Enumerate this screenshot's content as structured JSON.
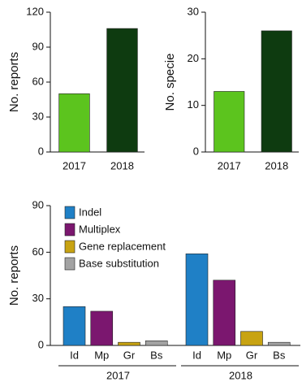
{
  "chart_data": [
    {
      "type": "bar",
      "y_label": "No. reports",
      "categories": [
        "2017",
        "2018"
      ],
      "values": [
        50,
        106
      ],
      "colors": [
        "#5cc41e",
        "#0e3b10"
      ],
      "ylim": [
        0,
        120
      ],
      "yticks": [
        0,
        30,
        60,
        90,
        120
      ]
    },
    {
      "type": "bar",
      "y_label": "No. specie",
      "categories": [
        "2017",
        "2018"
      ],
      "values": [
        13,
        26
      ],
      "colors": [
        "#5cc41e",
        "#0e3b10"
      ],
      "ylim": [
        0,
        30
      ],
      "yticks": [
        0,
        10,
        20,
        30
      ]
    },
    {
      "type": "bar",
      "y_label": "No. reports",
      "categories": [
        "2017",
        "2018"
      ],
      "series": [
        {
          "name": "Indel",
          "label": "Id",
          "color": "#1f80c6",
          "values": [
            25,
            59
          ]
        },
        {
          "name": "Multiplex",
          "label": "Mp",
          "color": "#7b176f",
          "values": [
            22,
            42
          ]
        },
        {
          "name": "Gene replacement",
          "label": "Gr",
          "color": "#c8a312",
          "values": [
            2,
            9
          ]
        },
        {
          "name": "Base substitution",
          "label": "Bs",
          "color": "#a3a3a3",
          "values": [
            3,
            2
          ]
        }
      ],
      "ylim": [
        0,
        90
      ],
      "yticks": [
        0,
        30,
        60,
        90
      ],
      "legend": "upper left"
    }
  ]
}
